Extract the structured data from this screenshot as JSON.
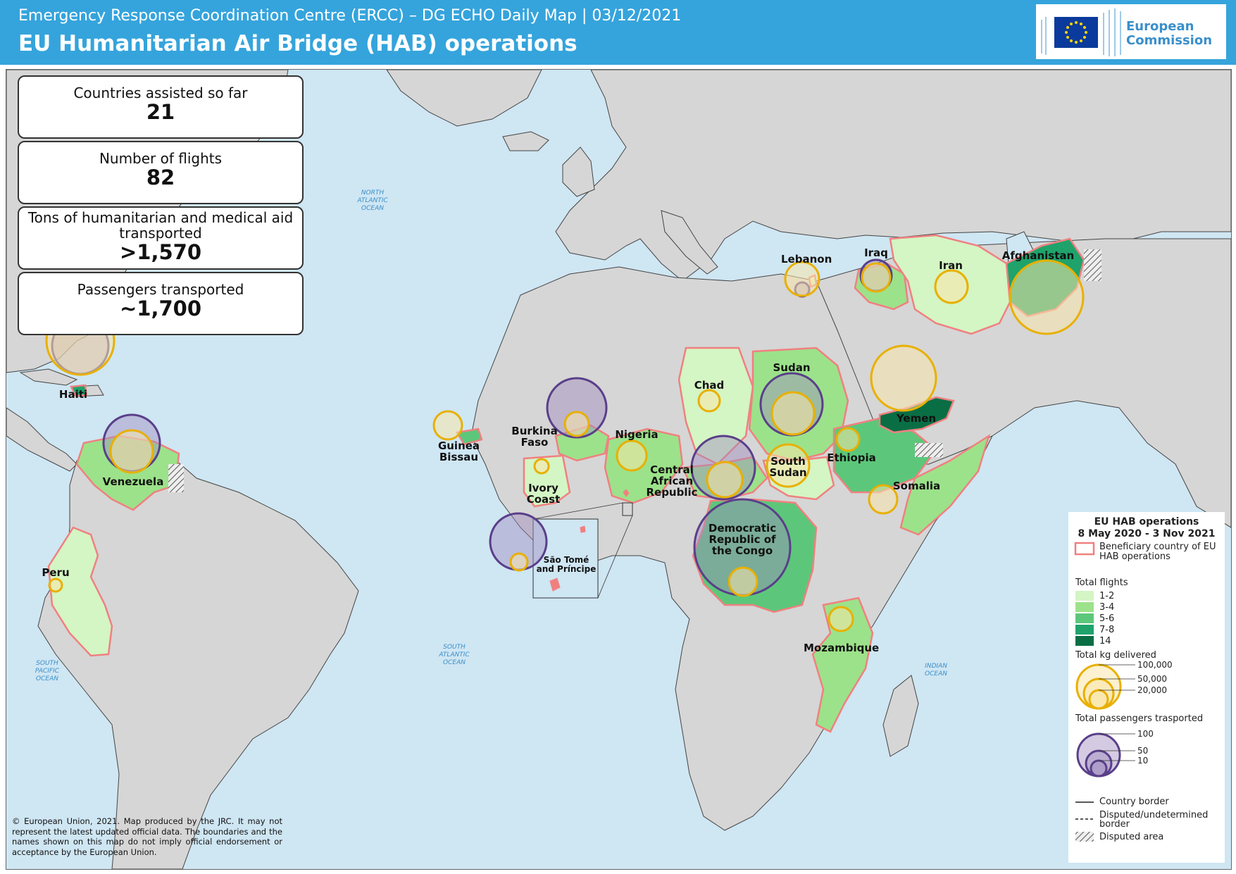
{
  "header": {
    "subtitle": "Emergency Response Coordination Centre (ERCC) – DG ECHO Daily Map | 03/12/2021",
    "title": "EU Humanitarian Air Bridge (HAB) operations",
    "logo_line1": "European",
    "logo_line2": "Commission"
  },
  "stats": [
    {
      "label": "Countries assisted so far",
      "value": "21"
    },
    {
      "label": "Number of flights",
      "value": "82"
    },
    {
      "label": "Tons of humanitarian and medical aid transported",
      "value": ">1,570"
    },
    {
      "label": "Passengers transported",
      "value": "~1,700"
    }
  ],
  "oceans": {
    "north_atlantic": "NORTH ATLANTIC OCEAN",
    "south_atlantic": "SOUTH ATLANTIC OCEAN",
    "south_pacific": "SOUTH PACIFIC OCEAN",
    "indian": "INDIAN OCEAN"
  },
  "countries": {
    "haiti": "Haiti",
    "venezuela": "Venezuela",
    "peru": "Peru",
    "guinea_bissau": "Guinea Bissau",
    "burkina_faso": "Burkina Faso",
    "ivory_coast": "Ivory Coast",
    "nigeria": "Nigeria",
    "chad": "Chad",
    "car": "Central African Republic",
    "sao_tome": "São Tomé and Príncipe",
    "drc": "Democratic Republic of the Congo",
    "sudan": "Sudan",
    "south_sudan": "South Sudan",
    "ethiopia": "Ethiopia",
    "somalia": "Somalia",
    "mozambique": "Mozambique",
    "lebanon": "Lebanon",
    "iraq": "Iraq",
    "iran": "Iran",
    "afghanistan": "Afghanistan",
    "yemen": "Yemen"
  },
  "legend": {
    "title_line1": "EU HAB operations",
    "title_line2": "8 May 2020 - 3 Nov 2021",
    "beneficiary": "Beneficiary country of EU HAB operations",
    "flights_title": "Total flights",
    "flight_classes": [
      {
        "label": "1-2",
        "color": "#d4f5c4"
      },
      {
        "label": "3-4",
        "color": "#9ce28a"
      },
      {
        "label": "5-6",
        "color": "#5cc77a"
      },
      {
        "label": "7-8",
        "color": "#1fa36b"
      },
      {
        "label": "14",
        "color": "#0a6e45"
      }
    ],
    "kg_title": "Total kg delivered",
    "kg_values": [
      "100,000",
      "50,000",
      "20,000"
    ],
    "pax_title": "Total passengers trasported",
    "pax_values": [
      "100",
      "50",
      "10"
    ],
    "country_border": "Country border",
    "disputed_border": "Disputed/undetermined border",
    "disputed_area": "Disputed area"
  },
  "colors": {
    "header": "#35a4dc",
    "ocean": "#cfe6f3",
    "land": "#d6d6d6",
    "kg_circle": "#e8b000",
    "pax_circle": "#5a3f8a",
    "beneficiary_border": "#f08080"
  },
  "copyright": "© European Union, 2021. Map produced by the JRC. It may not represent the latest updated official data. The boundaries and the names shown on this map do not imply official endorsement or acceptance by the European Union."
}
